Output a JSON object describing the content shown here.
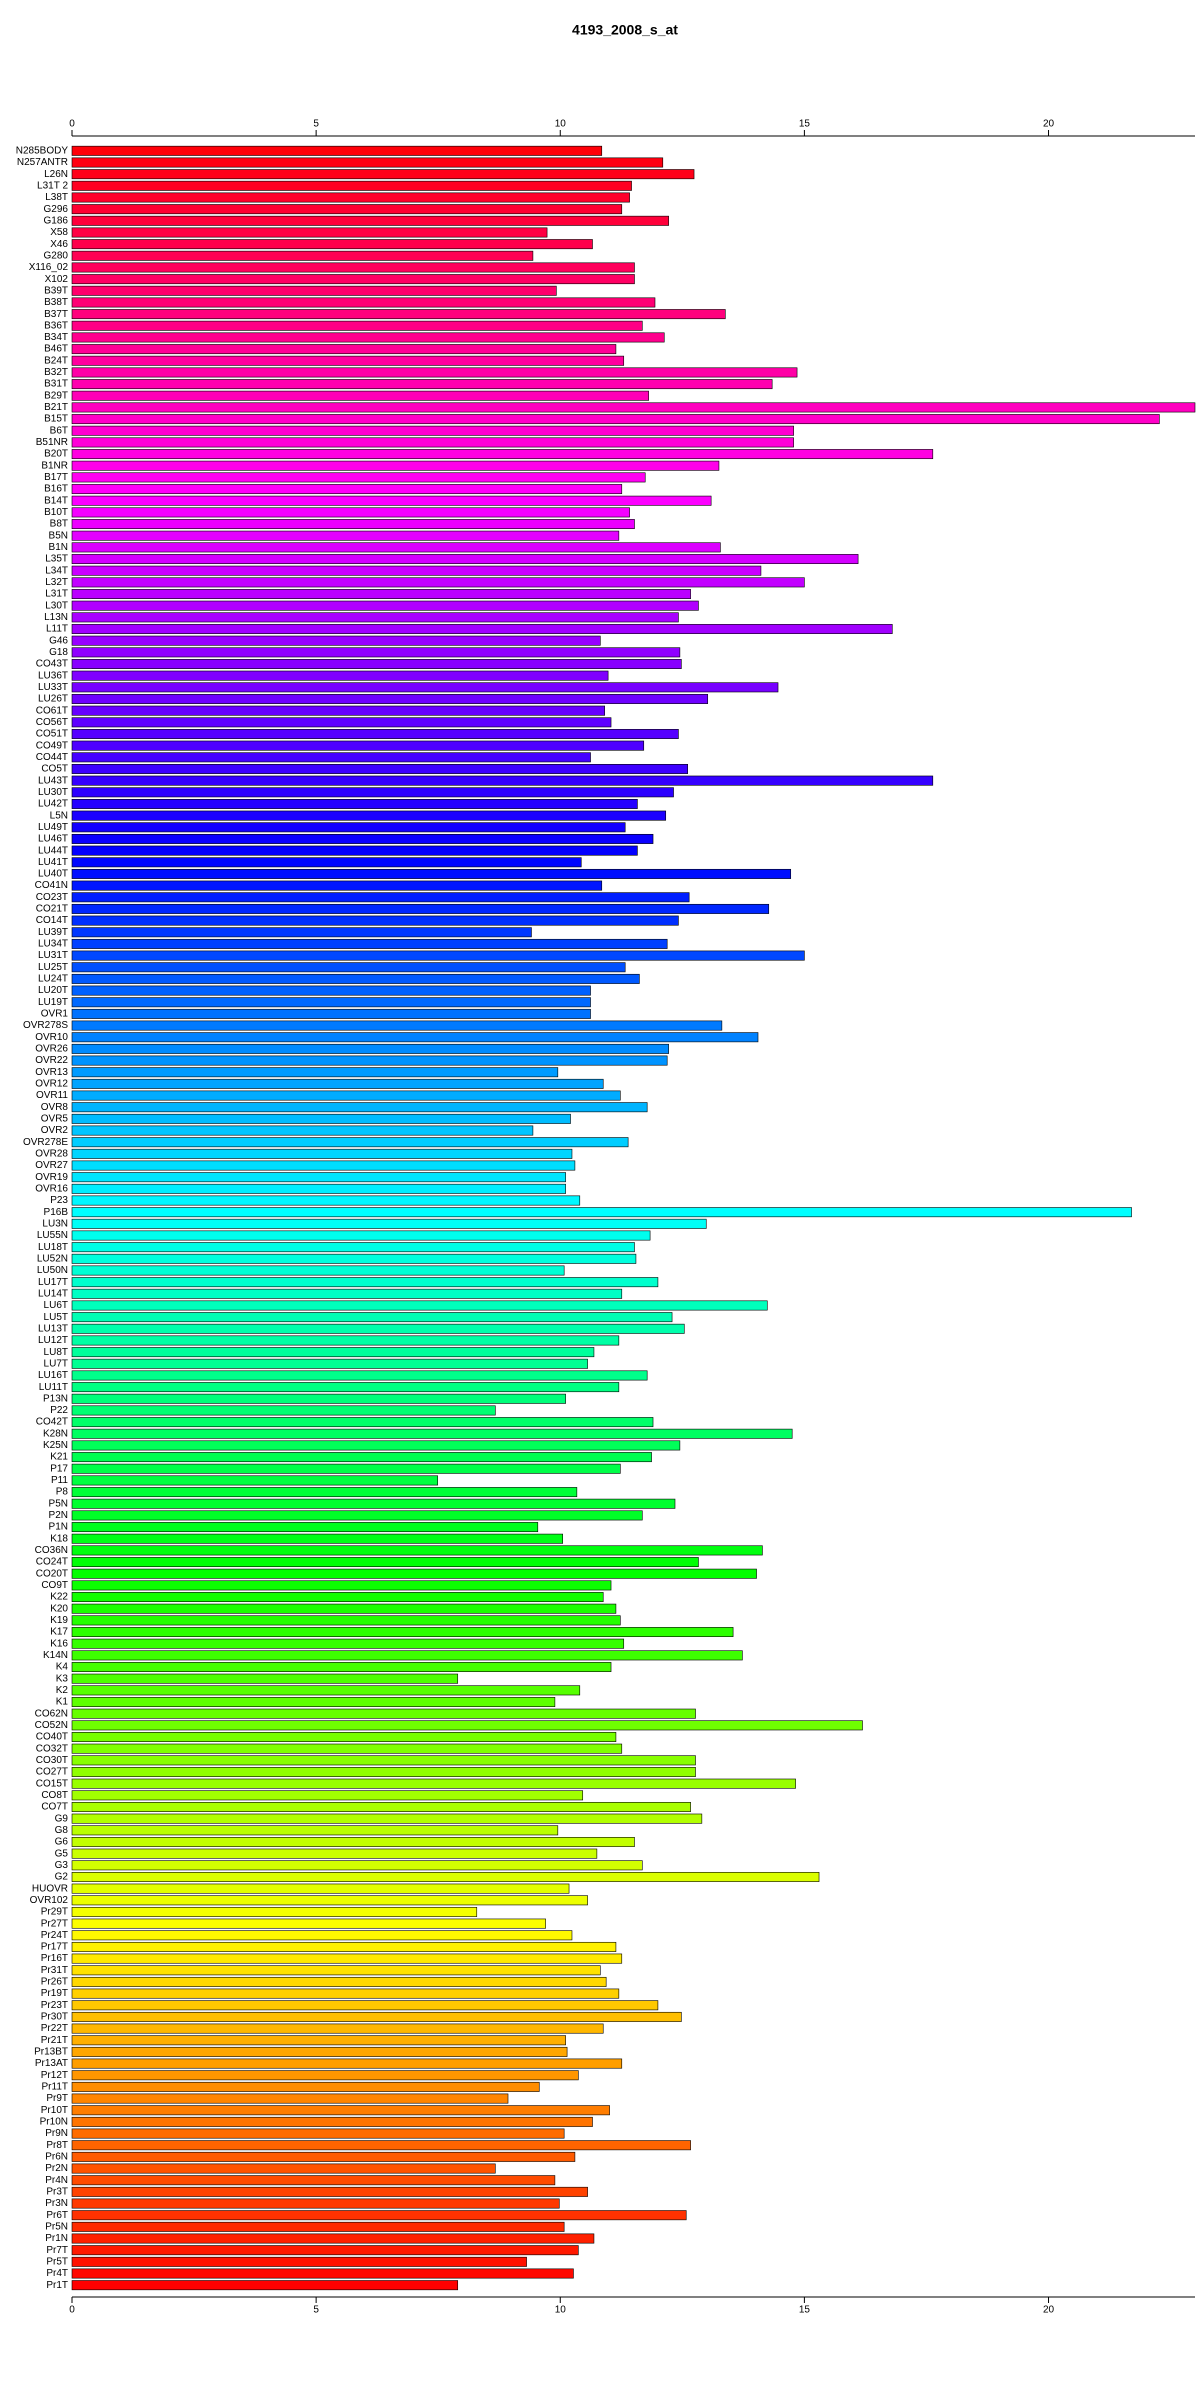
{
  "chart_data": {
    "type": "barh",
    "title": "4193_2008_s_at",
    "color_scale": "rainbow",
    "xlim": [
      0,
      23
    ],
    "xticks": [
      0,
      5,
      10,
      15,
      20
    ],
    "categories": [
      "N285BODY",
      "N257ANTR",
      "L26N",
      "L31T 2",
      "L38T",
      "G296",
      "G186",
      "X58",
      "X46",
      "G280",
      "X116_02",
      "X102",
      "B39T",
      "B38T",
      "B37T",
      "B36T",
      "B34T",
      "B46T",
      "B24T",
      "B32T",
      "B31T",
      "B29T",
      "B21T",
      "B15T",
      "B6T",
      "B51NR",
      "B20T",
      "B1NR",
      "B17T",
      "B16T",
      "B14T",
      "B10T",
      "B8T",
      "B5N",
      "B1N",
      "L35T",
      "L34T",
      "L32T",
      "L31T",
      "L30T",
      "L13N",
      "L11T",
      "G46",
      "G18",
      "CO43T",
      "LU36T",
      "LU33T",
      "LU26T",
      "CO61T",
      "CO56T",
      "CO51T",
      "CO49T",
      "CO44T",
      "CO5T",
      "LU43T",
      "LU30T",
      "LU42T",
      "L5N",
      "LU49T",
      "LU46T",
      "LU44T",
      "LU41T",
      "LU40T",
      "CO41N",
      "CO23T",
      "CO21T",
      "CO14T",
      "LU39T",
      "LU34T",
      "LU31T",
      "LU25T",
      "LU24T",
      "LU20T",
      "LU19T",
      "OVR1",
      "OVR278S",
      "OVR10",
      "OVR26",
      "OVR22",
      "OVR13",
      "OVR12",
      "OVR11",
      "OVR8",
      "OVR5",
      "OVR2",
      "OVR278E",
      "OVR28",
      "OVR27",
      "OVR19",
      "OVR16",
      "P23",
      "P16B",
      "LU3N",
      "LU55N",
      "LU18T",
      "LU52N",
      "LU50N",
      "LU17T",
      "LU14T",
      "LU6T",
      "LU5T",
      "LU13T",
      "LU12T",
      "LU8T",
      "LU7T",
      "LU16T",
      "LU11T",
      "P13N",
      "P22",
      "CO42T",
      "K28N",
      "K25N",
      "K21",
      "P17",
      "P11",
      "P8",
      "P5N",
      "P2N",
      "P1N",
      "K18",
      "CO36N",
      "CO24T",
      "CO20T",
      "CO9T",
      "K22",
      "K20",
      "K19",
      "K17",
      "K16",
      "K14N",
      "K4",
      "K3",
      "K2",
      "K1",
      "CO62N",
      "CO52N",
      "CO40T",
      "CO32T",
      "CO30T",
      "CO27T",
      "CO15T",
      "CO8T",
      "CO7T",
      "G9",
      "G8",
      "G6",
      "G5",
      "G3",
      "G2",
      "HUOVR",
      "OVR102",
      "Pr29T",
      "Pr27T",
      "Pr24T",
      "Pr17T",
      "Pr16T",
      "Pr31T",
      "Pr26T",
      "Pr19T",
      "Pr23T",
      "Pr30T",
      "Pr22T",
      "Pr21T",
      "Pr13BT",
      "Pr13AT",
      "Pr12T",
      "Pr11T",
      "Pr9T",
      "Pr10T",
      "Pr10N",
      "Pr9N",
      "Pr8T",
      "Pr6N",
      "Pr2N",
      "Pr4N",
      "Pr3T",
      "Pr3N",
      "Pr6T",
      "Pr5N",
      "Pr1N",
      "Pr7T",
      "Pr5T",
      "Pr4T",
      "Pr1T"
    ],
    "values": [
      10.85,
      12.1,
      12.74,
      11.46,
      11.42,
      11.26,
      12.22,
      9.73,
      10.66,
      9.44,
      11.52,
      11.52,
      9.92,
      11.94,
      13.38,
      11.68,
      12.13,
      11.14,
      11.3,
      14.85,
      14.34,
      11.81,
      23.0,
      22.27,
      14.78,
      14.78,
      17.63,
      13.25,
      11.74,
      11.26,
      13.09,
      11.42,
      11.52,
      11.2,
      13.28,
      16.1,
      14.11,
      15.0,
      12.67,
      12.83,
      12.42,
      16.8,
      10.82,
      12.45,
      12.48,
      10.98,
      14.46,
      13.02,
      10.91,
      11.04,
      12.42,
      11.71,
      10.62,
      12.61,
      17.63,
      12.32,
      11.58,
      12.16,
      11.33,
      11.9,
      11.58,
      10.43,
      14.72,
      10.85,
      12.64,
      14.27,
      12.42,
      9.41,
      12.19,
      15.0,
      11.33,
      11.62,
      10.62,
      10.62,
      10.62,
      13.31,
      14.05,
      12.22,
      12.19,
      9.95,
      10.88,
      11.23,
      11.78,
      10.21,
      9.44,
      11.39,
      10.24,
      10.3,
      10.11,
      10.11,
      10.4,
      21.7,
      12.99,
      11.84,
      11.52,
      11.55,
      10.08,
      12.0,
      11.26,
      14.24,
      12.29,
      12.54,
      11.2,
      10.69,
      10.56,
      11.78,
      11.2,
      10.11,
      8.67,
      11.9,
      14.75,
      12.45,
      11.87,
      11.23,
      7.49,
      10.34,
      12.35,
      11.68,
      9.54,
      10.05,
      14.14,
      12.83,
      14.02,
      11.04,
      10.88,
      11.14,
      11.23,
      13.54,
      11.3,
      13.73,
      11.04,
      7.9,
      10.4,
      9.89,
      12.77,
      16.19,
      11.14,
      11.26,
      12.77,
      12.77,
      14.82,
      10.46,
      12.67,
      12.9,
      9.95,
      11.52,
      10.75,
      11.68,
      15.3,
      10.18,
      10.56,
      8.29,
      9.7,
      10.24,
      11.14,
      11.26,
      10.82,
      10.94,
      11.2,
      12.0,
      12.48,
      10.88,
      10.11,
      10.14,
      11.26,
      10.37,
      9.57,
      8.93,
      11.01,
      10.66,
      10.08,
      12.67,
      10.3,
      8.67,
      9.89,
      10.56,
      9.98,
      12.58,
      10.08,
      10.69,
      10.37,
      9.31,
      10.27,
      7.9
    ]
  }
}
